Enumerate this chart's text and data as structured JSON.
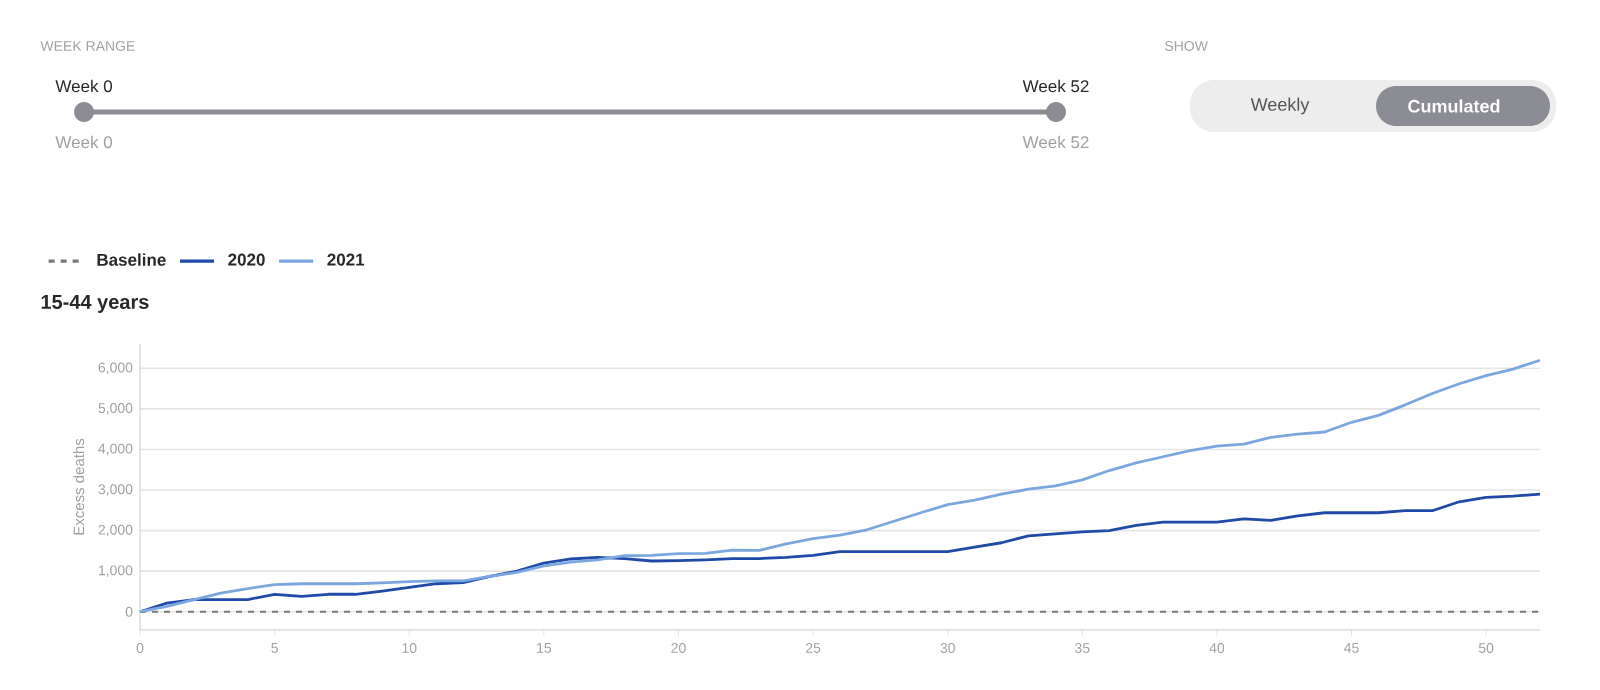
{
  "chart_data": {
    "type": "line",
    "title": "15-44 years",
    "ylabel": "Excess deaths",
    "annotations": [
      "WEEK RANGE",
      "Week 0",
      "Week 52",
      "Week 0",
      "Week 52",
      "SHOW",
      "Weekly",
      "Cumulated"
    ],
    "x": [
      0,
      1,
      2,
      3,
      4,
      5,
      6,
      7,
      8,
      9,
      10,
      11,
      12,
      13,
      14,
      15,
      16,
      17,
      18,
      19,
      20,
      21,
      22,
      23,
      24,
      25,
      26,
      27,
      28,
      29,
      30,
      31,
      32,
      33,
      34,
      35,
      36,
      37,
      38,
      39,
      40,
      41,
      42,
      43,
      44,
      45,
      46,
      47,
      48,
      49,
      50,
      51,
      52
    ],
    "series": [
      {
        "name": "Baseline",
        "color": "#777777",
        "line_style": "dashed",
        "values": [
          0,
          0,
          0,
          0,
          0,
          0,
          0,
          0,
          0,
          0,
          0,
          0,
          0,
          0,
          0,
          0,
          0,
          0,
          0,
          0,
          0,
          0,
          0,
          0,
          0,
          0,
          0,
          0,
          0,
          0,
          0,
          0,
          0,
          0,
          0,
          0,
          0,
          0,
          0,
          0,
          0,
          0,
          0,
          0,
          0,
          0,
          0,
          0,
          0,
          0,
          0,
          0,
          0
        ]
      },
      {
        "name": "2020",
        "color": "#1f4aa8",
        "values": [
          0,
          210,
          300,
          300,
          300,
          430,
          380,
          430,
          430,
          510,
          600,
          690,
          720,
          870,
          1000,
          1200,
          1300,
          1340,
          1310,
          1250,
          1260,
          1280,
          1310,
          1310,
          1340,
          1390,
          1480,
          1480,
          1480,
          1480,
          1480,
          1590,
          1700,
          1870,
          1920,
          1970,
          2000,
          2130,
          2210,
          2210,
          2210,
          2290,
          2250,
          2360,
          2440,
          2440,
          2440,
          2490,
          2490,
          2710,
          2820,
          2850,
          2900
        ]
      },
      {
        "name": "2021",
        "color": "#7ba7e0",
        "values": [
          0,
          130,
          300,
          460,
          570,
          670,
          690,
          690,
          690,
          710,
          740,
          760,
          760,
          870,
          970,
          1130,
          1220,
          1280,
          1380,
          1390,
          1430,
          1440,
          1520,
          1510,
          1670,
          1800,
          1890,
          2020,
          2230,
          2440,
          2640,
          2750,
          2900,
          3020,
          3100,
          3250,
          3480,
          3670,
          3820,
          3970,
          4080,
          4130,
          4300,
          4380,
          4430,
          4670,
          4840,
          5100,
          5380,
          5620,
          5820,
          5980,
          6200
        ]
      }
    ],
    "xlim": [
      0,
      52
    ],
    "xticks": [
      0,
      5,
      10,
      15,
      20,
      25,
      30,
      35,
      40,
      45,
      50
    ],
    "ylim": [
      -450,
      6600
    ],
    "yticks": [
      {
        "value": 0,
        "label": "0"
      },
      {
        "value": 1000,
        "label": "1,000"
      },
      {
        "value": 2000,
        "label": "2,000"
      },
      {
        "value": 3000,
        "label": "3,000"
      },
      {
        "value": 4000,
        "label": "4,000"
      },
      {
        "value": 5000,
        "label": "5,000"
      },
      {
        "value": 6000,
        "label": "6,000"
      }
    ],
    "grid": "y",
    "legend": "top left",
    "marker": "none",
    "line_style": "solid"
  }
}
